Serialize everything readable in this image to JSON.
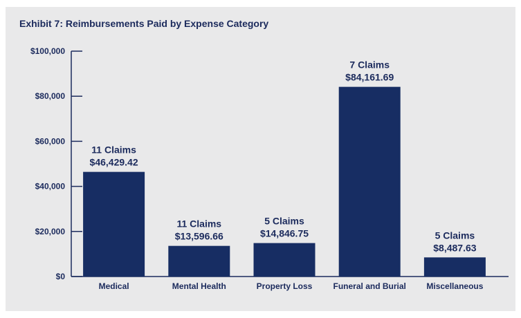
{
  "chart_data": {
    "type": "bar",
    "title": "Exhibit 7: Reimbursements Paid by Expense Category",
    "xlabel": "",
    "ylabel": "",
    "ylim": [
      0,
      100000
    ],
    "yticks": [
      {
        "value": 0,
        "label": "$0"
      },
      {
        "value": 20000,
        "label": "$20,000"
      },
      {
        "value": 40000,
        "label": "$40,000"
      },
      {
        "value": 60000,
        "label": "$60,000"
      },
      {
        "value": 80000,
        "label": "$80,000"
      },
      {
        "value": 100000,
        "label": "$100,000"
      }
    ],
    "categories": [
      "Medical",
      "Mental Health",
      "Property Loss",
      "Funeral and Burial",
      "Miscellaneous"
    ],
    "values": [
      46429.42,
      13596.66,
      14846.75,
      84161.69,
      8487.63
    ],
    "claims_labels": [
      "11 Claims",
      "11 Claims",
      "5 Claims",
      "7 Claims",
      "5 Claims"
    ],
    "value_labels": [
      "$46,429.42",
      "$13,596.66",
      "$14,846.75",
      "$84,161.69",
      "$8,487.63"
    ],
    "bar_color": "#172d63",
    "grid": false,
    "legend": "none"
  }
}
